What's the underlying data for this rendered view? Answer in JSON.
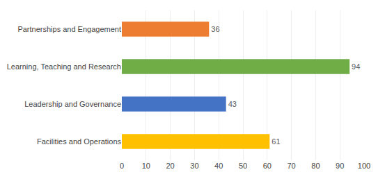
{
  "chart_data": {
    "type": "bar",
    "orientation": "horizontal",
    "categories": [
      "Facilities and Operations",
      "Leadership and Governance",
      "Learning, Teaching and Research",
      "Partnerships and Engagement"
    ],
    "values": [
      61,
      43,
      94,
      36
    ],
    "colors": [
      "#FFC000",
      "#4472C4",
      "#70AD47",
      "#ED7D31"
    ],
    "xlim": [
      0,
      100
    ],
    "xticks": [
      0,
      10,
      20,
      30,
      40,
      50,
      60,
      70,
      80,
      90,
      100
    ],
    "grid": true,
    "data_labels": true
  }
}
